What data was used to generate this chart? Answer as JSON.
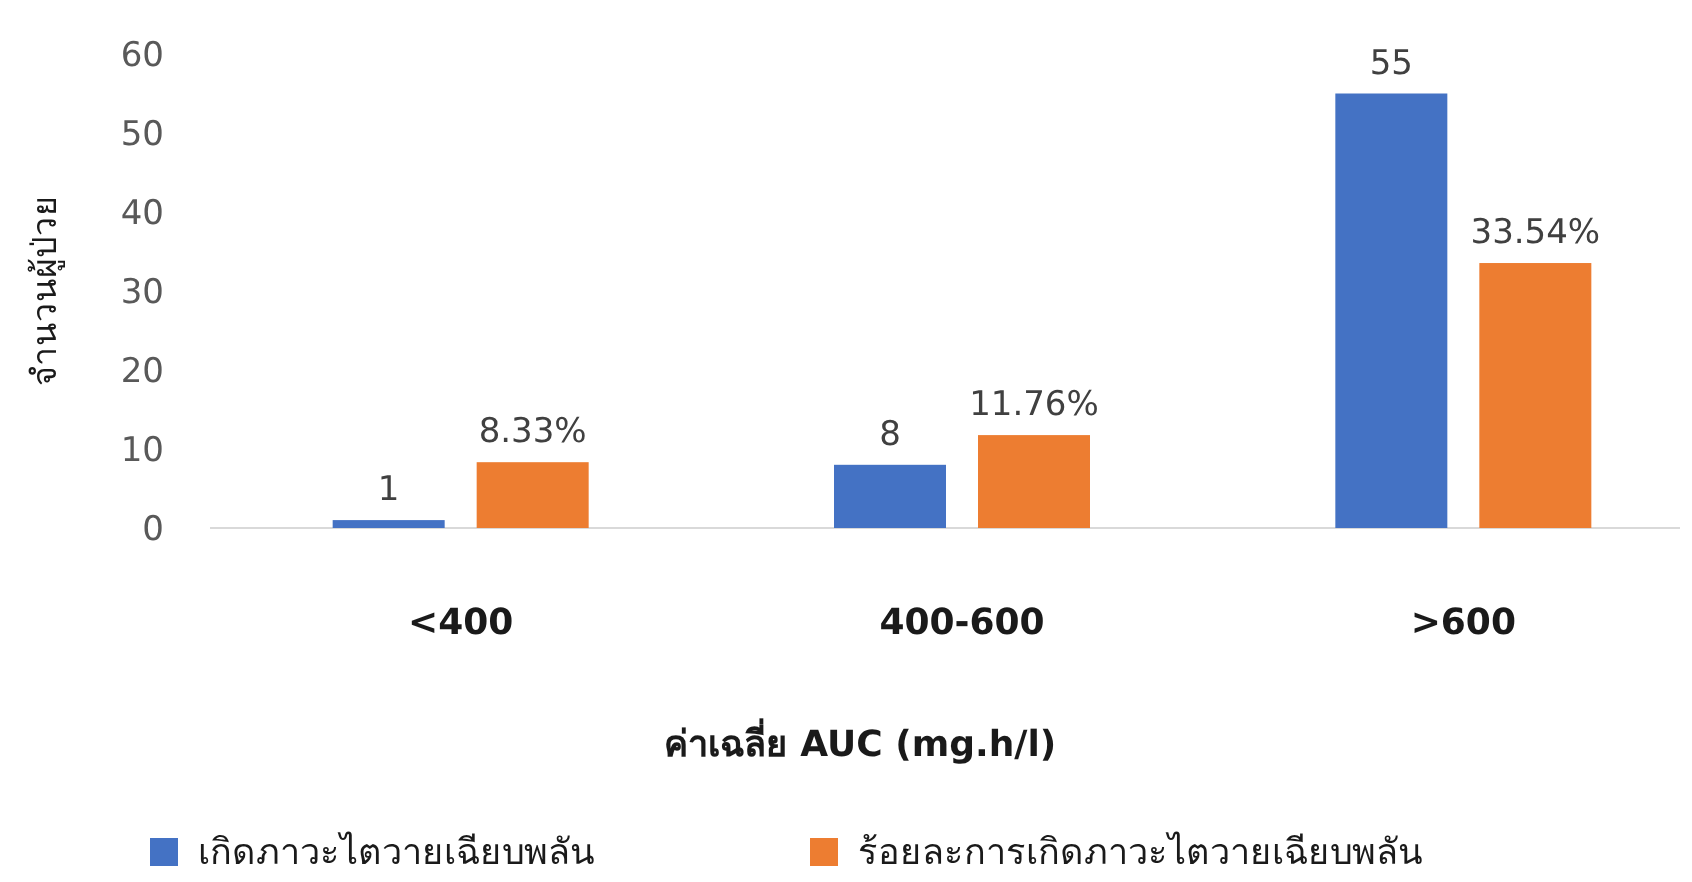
{
  "chart_data": {
    "type": "bar",
    "xlabel": "ค่าเฉลี่ย AUC (mg.h/l)",
    "ylabel": "จำนวนผู้ป่วย",
    "categories": [
      "<400",
      "400-600",
      ">600"
    ],
    "series": [
      {
        "name": "เกิดภาวะไตวายเฉียบพลัน",
        "color": "#4472c4",
        "values": [
          1,
          8,
          55
        ],
        "value_labels": [
          "1",
          "8",
          "55"
        ]
      },
      {
        "name": "ร้อยละการเกิดภาวะไตวายเฉียบพลัน",
        "color": "#ed7d31",
        "values": [
          8.33,
          11.76,
          33.54
        ],
        "value_labels": [
          "8.33%",
          "11.76%",
          "33.54%"
        ]
      }
    ],
    "ylim": [
      0,
      60
    ],
    "yticks": [
      0,
      10,
      20,
      30,
      40,
      50,
      60
    ],
    "grid": false,
    "legend": "bottom"
  }
}
